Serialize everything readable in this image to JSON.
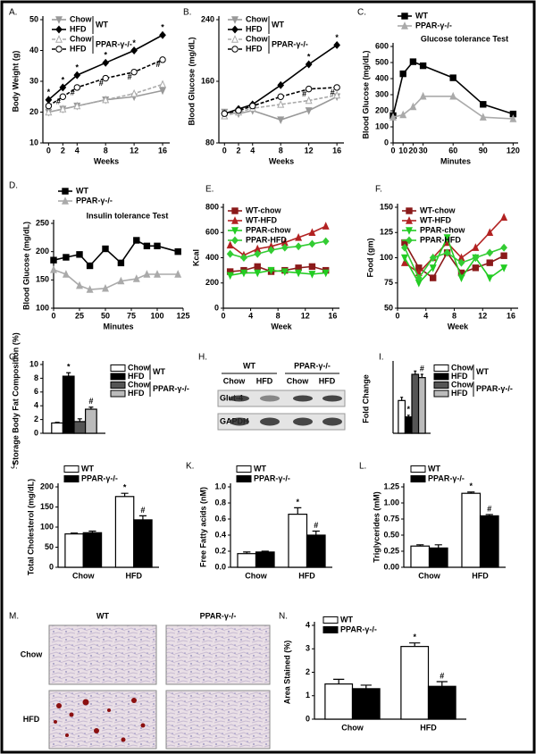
{
  "chart_data": [
    {
      "type": "line",
      "label": "A.",
      "xlabel": "Weeks",
      "ylabel": "Body Weight (g)",
      "x": [
        0,
        2,
        4,
        8,
        12,
        16
      ],
      "xlim": [
        -0.8,
        17
      ],
      "xticks": [
        0,
        2,
        4,
        8,
        12,
        16
      ],
      "ylim": [
        10,
        50
      ],
      "yticks": [
        10,
        20,
        30,
        40,
        50
      ],
      "groups": [
        "WT",
        "PPAR-γ-/-"
      ],
      "series": [
        {
          "name": "Chow",
          "color": "#999999",
          "marker": "triangle-down",
          "dash": false,
          "values": [
            20,
            21,
            22,
            24,
            25,
            27
          ]
        },
        {
          "name": "HFD",
          "color": "#000000",
          "marker": "diamond",
          "dash": false,
          "values": [
            24,
            28,
            32,
            36,
            40,
            45
          ],
          "annotations": [
            "*",
            "*",
            "*",
            "*",
            "*",
            "*"
          ]
        },
        {
          "name": "Chow",
          "color": "#aaaaaa",
          "marker": "open-triangle",
          "dash": true,
          "values": [
            20,
            21,
            22,
            24,
            26,
            29
          ]
        },
        {
          "name": "HFD",
          "color": "#000000",
          "marker": "open-circle",
          "dash": true,
          "values": [
            22,
            25,
            28,
            31,
            33,
            37
          ],
          "annotations": [
            null,
            "#",
            "#",
            "#",
            "#",
            "#"
          ]
        }
      ]
    },
    {
      "type": "line",
      "label": "B.",
      "xlabel": "Weeks",
      "ylabel": "Blood Glucose (mg/dL)",
      "x": [
        0,
        2,
        4,
        8,
        12,
        16
      ],
      "xlim": [
        -0.8,
        17
      ],
      "xticks": [
        0,
        2,
        4,
        8,
        12,
        16
      ],
      "ylim": [
        80,
        240
      ],
      "yticks": [
        80,
        160,
        240
      ],
      "groups": [
        "WT",
        "PPAR-γ-/-"
      ],
      "series": [
        {
          "name": "Chow",
          "color": "#999999",
          "marker": "triangle-down",
          "dash": false,
          "values": [
            120,
            118,
            122,
            110,
            122,
            140
          ]
        },
        {
          "name": "HFD",
          "color": "#000000",
          "marker": "diamond",
          "dash": false,
          "values": [
            118,
            124,
            130,
            155,
            182,
            207
          ],
          "annotations": [
            null,
            null,
            null,
            null,
            "*",
            "*"
          ]
        },
        {
          "name": "Chow",
          "color": "#aaaaaa",
          "marker": "open-triangle",
          "dash": true,
          "values": [
            115,
            120,
            125,
            130,
            135,
            142
          ]
        },
        {
          "name": "HFD",
          "color": "#000000",
          "marker": "open-circle",
          "dash": true,
          "values": [
            118,
            122,
            128,
            140,
            150,
            152
          ],
          "annotations": [
            null,
            null,
            null,
            null,
            "#",
            "#"
          ]
        }
      ]
    },
    {
      "type": "line",
      "label": "C.",
      "title": "Glucose tolerance Test",
      "xlabel": "Minutes",
      "ylabel": "Blood Glucose (mg/dL)",
      "x": [
        0,
        10,
        20,
        30,
        60,
        90,
        120
      ],
      "xlim": [
        0,
        125
      ],
      "xticks": [
        0,
        10,
        20,
        30,
        60,
        90,
        120
      ],
      "ylim": [
        0,
        600
      ],
      "yticks": [
        0,
        100,
        200,
        300,
        400,
        500,
        600
      ],
      "series": [
        {
          "name": "WT",
          "color": "#000000",
          "marker": "square",
          "dash": false,
          "values": [
            170,
            430,
            505,
            480,
            405,
            240,
            180
          ]
        },
        {
          "name": "PPAR-γ-/-",
          "color": "#aaaaaa",
          "marker": "triangle",
          "dash": false,
          "values": [
            160,
            175,
            225,
            290,
            290,
            160,
            150
          ]
        }
      ]
    },
    {
      "type": "line",
      "label": "D.",
      "title": "Insulin tolerance Test",
      "xlabel": "Minutes",
      "ylabel": "Blood Glucose (mg/dL)",
      "x": [
        0,
        12,
        25,
        35,
        50,
        65,
        80,
        90,
        100,
        120
      ],
      "xlim": [
        0,
        125
      ],
      "xticks": [
        0,
        25,
        50,
        75,
        100,
        125
      ],
      "ylim": [
        100,
        250
      ],
      "yticks": [
        100,
        150,
        200,
        250
      ],
      "series": [
        {
          "name": "WT",
          "color": "#000000",
          "marker": "square",
          "dash": false,
          "values": [
            185,
            190,
            195,
            175,
            205,
            180,
            220,
            210,
            210,
            200
          ]
        },
        {
          "name": "PPAR-γ-/-",
          "color": "#aaaaaa",
          "marker": "triangle",
          "dash": false,
          "values": [
            168,
            160,
            140,
            133,
            135,
            148,
            152,
            160,
            160,
            160
          ]
        }
      ]
    },
    {
      "type": "line",
      "label": "E.",
      "xlabel": "Week",
      "ylabel": "Kcal",
      "x": [
        1,
        3,
        5,
        7,
        9,
        11,
        13,
        15
      ],
      "xlim": [
        0,
        17
      ],
      "xticks": [
        0,
        4,
        8,
        12,
        16
      ],
      "ylim": [
        0,
        800
      ],
      "yticks": [
        0,
        200,
        400,
        600,
        800
      ],
      "series": [
        {
          "name": "WT-chow",
          "color": "#8b1a1a",
          "marker": "square",
          "dash": false,
          "values": [
            290,
            300,
            330,
            290,
            300,
            320,
            330,
            300
          ]
        },
        {
          "name": "WT-HFD",
          "color": "#b22222",
          "marker": "triangle",
          "dash": false,
          "values": [
            500,
            420,
            470,
            490,
            520,
            560,
            600,
            650
          ]
        },
        {
          "name": "PPAR-chow",
          "color": "#22cc22",
          "marker": "triangle-down",
          "dash": false,
          "values": [
            260,
            280,
            280,
            300,
            290,
            280,
            270,
            280
          ]
        },
        {
          "name": "PPAR-HFD",
          "color": "#33cc33",
          "marker": "diamond",
          "dash": false,
          "values": [
            430,
            400,
            430,
            460,
            480,
            490,
            510,
            530
          ]
        }
      ]
    },
    {
      "type": "line",
      "label": "F.",
      "xlabel": "Week",
      "ylabel": "Food (gm)",
      "x": [
        1,
        3,
        5,
        7,
        9,
        11,
        13,
        15
      ],
      "xlim": [
        0,
        17
      ],
      "xticks": [
        0,
        4,
        8,
        12,
        16
      ],
      "ylim": [
        50,
        150
      ],
      "yticks": [
        50,
        75,
        100,
        125,
        150
      ],
      "series": [
        {
          "name": "WT-chow",
          "color": "#8b1a1a",
          "marker": "square",
          "dash": false,
          "values": [
            115,
            90,
            80,
            105,
            85,
            90,
            95,
            102
          ]
        },
        {
          "name": "WT-HFD",
          "color": "#b22222",
          "marker": "triangle",
          "dash": false,
          "values": [
            95,
            85,
            100,
            115,
            100,
            110,
            125,
            140
          ]
        },
        {
          "name": "PPAR-chow",
          "color": "#22cc22",
          "marker": "triangle-down",
          "dash": false,
          "values": [
            100,
            75,
            90,
            120,
            80,
            100,
            80,
            90
          ]
        },
        {
          "name": "PPAR-HFD",
          "color": "#33cc33",
          "marker": "diamond",
          "dash": false,
          "values": [
            110,
            80,
            100,
            105,
            95,
            100,
            105,
            110
          ]
        }
      ]
    },
    {
      "type": "bar",
      "label": "G.",
      "ylabel": "Storage Body Fat Composition (%)",
      "ylim": [
        0,
        10
      ],
      "yticks": [
        0,
        2,
        4,
        6,
        8,
        10
      ],
      "groups": [
        "WT",
        "PPAR-γ-/-"
      ],
      "series": [
        {
          "name": "Chow",
          "color": "#ffffff",
          "values": [
            1.5
          ],
          "errors": [
            0.1
          ]
        },
        {
          "name": "HFD",
          "color": "#000000",
          "values": [
            8.3
          ],
          "errors": [
            0.5
          ],
          "annotations": [
            "*"
          ]
        },
        {
          "name": "Chow",
          "color": "#555555",
          "values": [
            1.7
          ],
          "errors": [
            0.4
          ]
        },
        {
          "name": "HFD",
          "color": "#bbbbbb",
          "values": [
            3.5
          ],
          "errors": [
            0.3
          ],
          "annotations": [
            "#"
          ]
        }
      ]
    },
    {
      "type": "blot",
      "label": "H.",
      "groups": [
        "WT",
        "PPAR-γ-/-"
      ],
      "lanes": [
        "Chow",
        "HFD",
        "Chow",
        "HFD"
      ],
      "rows": [
        "Glut-4",
        "GAPDH"
      ]
    },
    {
      "type": "bar",
      "label": "I.",
      "ylabel": "Fold Change",
      "ylim": [
        0,
        2.1
      ],
      "groups": [
        "WT",
        "PPAR-γ-/-"
      ],
      "series": [
        {
          "name": "Chow",
          "color": "#ffffff",
          "values": [
            1.0
          ],
          "errors": [
            0.1
          ]
        },
        {
          "name": "HFD",
          "color": "#000000",
          "values": [
            0.5
          ],
          "errors": [
            0.05
          ],
          "annotations": [
            "*"
          ]
        },
        {
          "name": "Chow",
          "color": "#555555",
          "values": [
            1.8
          ],
          "errors": [
            0.1
          ]
        },
        {
          "name": "HFD",
          "color": "#bbbbbb",
          "values": [
            1.7
          ],
          "errors": [
            0.1
          ],
          "annotations": [
            "#"
          ]
        }
      ]
    },
    {
      "type": "bar",
      "label": "J.",
      "ylabel": "Total Cholesterol (mg/dL)",
      "categories": [
        "Chow",
        "HFD"
      ],
      "ylim": [
        0,
        200
      ],
      "yticks": [
        0,
        50,
        100,
        150,
        200
      ],
      "series": [
        {
          "name": "WT",
          "color": "#ffffff",
          "values": [
            83,
            176
          ],
          "errors": [
            2,
            8
          ],
          "annotations": [
            null,
            "*"
          ]
        },
        {
          "name": "PPAR-γ-/-",
          "color": "#000000",
          "values": [
            86,
            118
          ],
          "errors": [
            4,
            10
          ],
          "annotations": [
            null,
            "#"
          ]
        }
      ]
    },
    {
      "type": "bar",
      "label": "K.",
      "ylabel": "Free Fatty acids (nM)",
      "categories": [
        "Chow",
        "HFD"
      ],
      "ylim": [
        0,
        1
      ],
      "yticks": [
        {
          "value": 0,
          "label": "0.0"
        },
        0.2,
        0.4,
        0.6,
        0.8,
        {
          "value": 1,
          "label": "1.0"
        }
      ],
      "series": [
        {
          "name": "WT",
          "color": "#ffffff",
          "values": [
            0.17,
            0.66
          ],
          "errors": [
            0.02,
            0.08
          ],
          "annotations": [
            null,
            "*"
          ]
        },
        {
          "name": "PPAR-γ-/-",
          "color": "#000000",
          "values": [
            0.19,
            0.4
          ],
          "errors": [
            0.01,
            0.05
          ],
          "annotations": [
            null,
            "#"
          ]
        }
      ]
    },
    {
      "type": "bar",
      "label": "L.",
      "ylabel": "Triglycerides (mM)",
      "categories": [
        "Chow",
        "HFD"
      ],
      "ylim": [
        0,
        1.25
      ],
      "yticks": [
        {
          "value": 0,
          "label": "0.00"
        },
        0.25,
        {
          "value": 0.5,
          "label": "0.50"
        },
        0.75,
        {
          "value": 1,
          "label": "1.00"
        },
        1.25
      ],
      "series": [
        {
          "name": "WT",
          "color": "#ffffff",
          "values": [
            0.33,
            1.15
          ],
          "errors": [
            0.02,
            0.02
          ],
          "annotations": [
            null,
            "*"
          ]
        },
        {
          "name": "PPAR-γ-/-",
          "color": "#000000",
          "values": [
            0.3,
            0.8
          ],
          "errors": [
            0.05,
            0.02
          ],
          "annotations": [
            null,
            "#"
          ]
        }
      ]
    },
    {
      "type": "images",
      "label": "M.",
      "columns": [
        "WT",
        "PPAR-γ-/-"
      ],
      "rows": [
        "Chow",
        "HFD"
      ]
    },
    {
      "type": "bar",
      "label": "N.",
      "ylabel": "Area Stained (%)",
      "categories": [
        "Chow",
        "HFD"
      ],
      "ylim": [
        0,
        4
      ],
      "yticks": [
        0,
        1,
        2,
        3,
        4
      ],
      "series": [
        {
          "name": "WT",
          "color": "#ffffff",
          "values": [
            1.5,
            3.1
          ],
          "errors": [
            0.2,
            0.15
          ],
          "annotations": [
            null,
            "*"
          ]
        },
        {
          "name": "PPAR-γ-/-",
          "color": "#000000",
          "values": [
            1.3,
            1.4
          ],
          "errors": [
            0.15,
            0.2
          ],
          "annotations": [
            null,
            "#"
          ]
        }
      ]
    }
  ]
}
